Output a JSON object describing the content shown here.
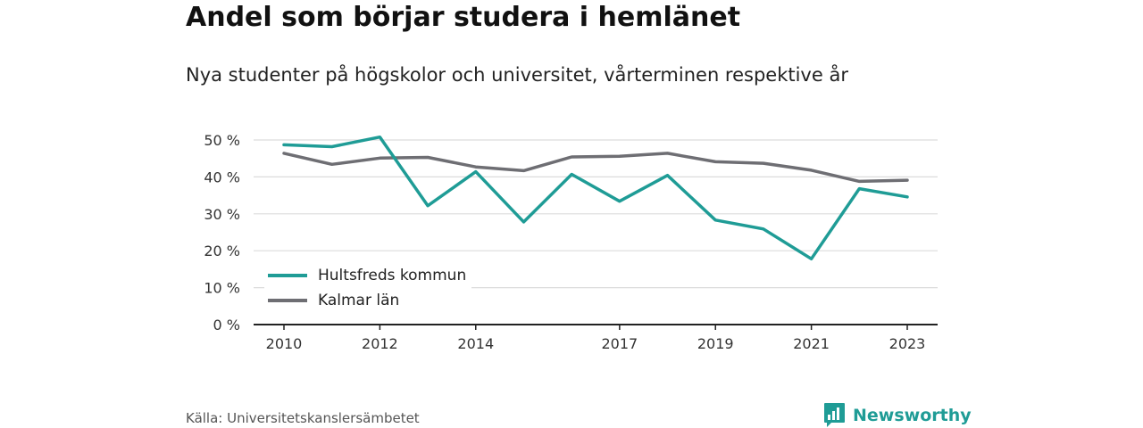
{
  "chart_data": {
    "type": "line",
    "title": "Andel som börjar studera i hemlänet",
    "subtitle": "Nya studenter på högskolor och universitet, vårterminen respektive år",
    "x": [
      2010,
      2011,
      2012,
      2013,
      2014,
      2015,
      2016,
      2017,
      2018,
      2019,
      2020,
      2021,
      2022,
      2023
    ],
    "x_tick_labels": [
      "2010",
      "2012",
      "2014",
      "2017",
      "2019",
      "2021",
      "2023"
    ],
    "y_tick_labels": [
      "0 %",
      "10 %",
      "20 %",
      "30 %",
      "40 %",
      "50 %"
    ],
    "ylim": [
      0,
      50
    ],
    "y_ticks": [
      0,
      10,
      20,
      30,
      40,
      50
    ],
    "grid": true,
    "legend_position": "bottom-left",
    "series": [
      {
        "name": "Hultsfreds kommun",
        "color": "#1f9c96",
        "values": [
          48.7,
          48.2,
          50.8,
          32.2,
          41.4,
          27.8,
          40.7,
          33.4,
          40.4,
          28.3,
          25.9,
          17.8,
          36.8,
          34.6
        ]
      },
      {
        "name": "Kalmar län",
        "color": "#6e6e73",
        "values": [
          46.4,
          43.4,
          45.1,
          45.3,
          42.7,
          41.7,
          45.4,
          45.6,
          46.4,
          44.1,
          43.7,
          41.8,
          38.8,
          39.1
        ]
      }
    ]
  },
  "source": "Källa: Universitetskanslersämbetet",
  "brand": {
    "name": "Newsworthy",
    "icon": "newsworthy-logo-icon",
    "color": "#1f9c96"
  }
}
